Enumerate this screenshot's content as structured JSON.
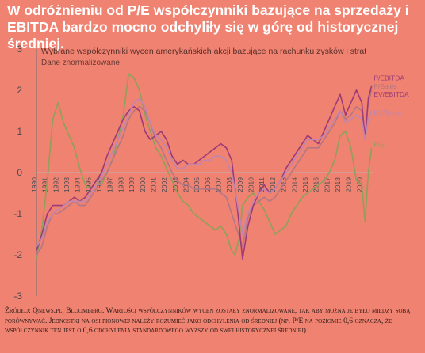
{
  "headline": "W odróżnieniu od P/E współczynniki bazujące na sprzedaży i EBITDA bardzo mocno odchyliły się w górę od historycznej średniej.",
  "source": "Źródło: Qnews.pl, Bloomberg. Wartości współczynników wycen zostały znormalizowane, tak aby można je było między sobą porównywać. Jednostki na osi pionowej należy rozumieć jako odchylenia od średniej (np. P/E na poziomie 0,6 oznacza, że współczynnik ten jest o 0,6 odchylenia standardowego wyższy od swej historycznej średniej).",
  "colors": {
    "background": "#ef8270",
    "axis": "#7a6f78",
    "zero_line": "#bfb4b6"
  },
  "chart_data": {
    "type": "line",
    "title": "Wybrane współczynniki wycen amerykańskich akcji bazujące na rachunku zysków i strat",
    "subtitle": "Dane znormalizowane",
    "ylim": [
      -3,
      3
    ],
    "xlim": [
      1990,
      2021
    ],
    "yticks": [
      "-3",
      "-2",
      "-1",
      "0",
      "1",
      "2",
      "3"
    ],
    "xticks": [
      "1990",
      "1991",
      "1992",
      "1993",
      "1994",
      "1995",
      "1996",
      "1997",
      "1998",
      "1999",
      "2000",
      "2001",
      "2002",
      "2003",
      "2004",
      "2005",
      "2006",
      "2007",
      "2008",
      "2009",
      "2010",
      "2011",
      "2012",
      "2013",
      "2014",
      "2015",
      "2016",
      "2017",
      "2018",
      "2019",
      "2020"
    ],
    "grid": false,
    "series": [
      {
        "name": "P/E",
        "color": "#8fa05a",
        "x": [
          1990,
          1990.5,
          1991,
          1991.5,
          1992,
          1992.5,
          1993,
          1993.5,
          1994,
          1994.5,
          1995,
          1995.5,
          1996,
          1996.5,
          1997,
          1997.5,
          1998,
          1998.5,
          1999,
          1999.5,
          2000,
          2000.5,
          2001,
          2001.5,
          2002,
          2002.5,
          2003,
          2003.5,
          2004,
          2004.5,
          2005,
          2005.5,
          2006,
          2006.5,
          2007,
          2007.5,
          2008,
          2008.3,
          2008.7,
          2009,
          2009.5,
          2010,
          2010.5,
          2011,
          2011.5,
          2012,
          2012.5,
          2013,
          2013.5,
          2014,
          2014.5,
          2015,
          2015.5,
          2016,
          2016.5,
          2017,
          2017.5,
          2018,
          2018.5,
          2019,
          2019.5,
          2020,
          2020.3,
          2020.6,
          2020.9
        ],
        "y": [
          -2.1,
          -1.4,
          -0.2,
          1.3,
          1.7,
          1.2,
          0.9,
          0.6,
          0.1,
          -0.3,
          -0.4,
          -0.2,
          -0.3,
          0.0,
          0.3,
          0.8,
          1.4,
          2.4,
          2.3,
          2.0,
          1.4,
          1.0,
          0.6,
          0.4,
          0.1,
          -0.2,
          -0.5,
          -0.7,
          -0.8,
          -1.0,
          -1.1,
          -1.2,
          -1.3,
          -1.4,
          -1.3,
          -1.5,
          -1.9,
          -2.0,
          -1.6,
          -0.8,
          -0.6,
          -0.5,
          -0.7,
          -0.9,
          -1.2,
          -1.5,
          -1.4,
          -1.3,
          -1.0,
          -0.8,
          -0.6,
          -0.5,
          -0.4,
          -0.3,
          -0.2,
          0.0,
          0.3,
          0.9,
          1.0,
          0.6,
          -0.2,
          -0.3,
          -1.2,
          0.0,
          0.6
        ]
      },
      {
        "name": "P/Sales",
        "color": "#b27786",
        "x": [
          1990,
          1990.5,
          1991,
          1991.5,
          1992,
          1992.5,
          1993,
          1993.5,
          1994,
          1994.5,
          1995,
          1995.5,
          1996,
          1996.5,
          1997,
          1997.5,
          1998,
          1998.5,
          1999,
          1999.5,
          2000,
          2000.5,
          2001,
          2001.5,
          2002,
          2002.5,
          2003,
          2003.5,
          2004,
          2004.5,
          2005,
          2005.5,
          2006,
          2006.5,
          2007,
          2007.5,
          2008,
          2008.5,
          2009,
          2009.5,
          2010,
          2010.5,
          2011,
          2011.5,
          2012,
          2012.5,
          2013,
          2013.5,
          2014,
          2014.5,
          2015,
          2015.5,
          2016,
          2016.5,
          2017,
          2017.5,
          2018,
          2018.5,
          2019,
          2019.5,
          2020,
          2020.3,
          2020.6,
          2020.9
        ],
        "y": [
          -2.0,
          -1.8,
          -1.3,
          -1.0,
          -1.0,
          -0.9,
          -0.8,
          -0.7,
          -0.8,
          -0.8,
          -0.6,
          -0.4,
          -0.2,
          0.0,
          0.3,
          0.6,
          0.9,
          1.3,
          1.5,
          1.6,
          1.5,
          1.2,
          0.8,
          0.6,
          0.3,
          0.0,
          -0.2,
          -0.3,
          -0.3,
          -0.4,
          -0.4,
          -0.4,
          -0.4,
          -0.4,
          -0.5,
          -0.6,
          -1.0,
          -1.4,
          -1.8,
          -1.1,
          -0.8,
          -0.7,
          -0.6,
          -0.7,
          -0.6,
          -0.4,
          -0.2,
          0.0,
          0.2,
          0.4,
          0.6,
          0.6,
          0.6,
          0.8,
          1.0,
          1.2,
          1.5,
          1.3,
          1.4,
          1.6,
          1.5,
          0.9,
          1.7,
          2.0
        ]
      },
      {
        "name": "EV/EBITDA",
        "color": "#9d3a78",
        "x": [
          1990,
          1990.5,
          1991,
          1991.5,
          1992,
          1992.5,
          1993,
          1993.5,
          1994,
          1994.5,
          1995,
          1995.5,
          1996,
          1996.5,
          1997,
          1997.5,
          1998,
          1998.5,
          1999,
          1999.5,
          2000,
          2000.5,
          2001,
          2001.5,
          2002,
          2002.5,
          2003,
          2003.5,
          2004,
          2004.5,
          2005,
          2005.5,
          2006,
          2006.5,
          2007,
          2007.5,
          2008,
          2008.5,
          2009,
          2009.5,
          2010,
          2010.5,
          2011,
          2011.5,
          2012,
          2012.5,
          2013,
          2013.5,
          2014,
          2014.5,
          2015,
          2015.5,
          2016,
          2016.5,
          2017,
          2017.5,
          2018,
          2018.5,
          2019,
          2019.5,
          2020,
          2020.3,
          2020.6,
          2020.9
        ],
        "y": [
          -1.9,
          -1.5,
          -1.0,
          -0.8,
          -0.8,
          -0.8,
          -0.7,
          -0.6,
          -0.7,
          -0.6,
          -0.4,
          -0.2,
          0.0,
          0.4,
          0.7,
          1.0,
          1.3,
          1.5,
          1.6,
          1.5,
          1.0,
          0.8,
          0.9,
          1.0,
          0.8,
          0.4,
          0.2,
          0.3,
          0.2,
          0.2,
          0.3,
          0.4,
          0.5,
          0.6,
          0.7,
          0.6,
          0.3,
          -0.8,
          -2.1,
          -1.3,
          -0.8,
          -0.5,
          -0.3,
          -0.5,
          -0.4,
          -0.2,
          0.1,
          0.3,
          0.5,
          0.7,
          0.9,
          0.8,
          0.7,
          1.0,
          1.3,
          1.6,
          1.9,
          1.4,
          1.7,
          2.0,
          1.7,
          0.8,
          1.8,
          2.1
        ]
      },
      {
        "name": "EV/Sales",
        "color": "#c086b1",
        "x": [
          1990,
          1990.5,
          1991,
          1991.5,
          1992,
          1992.5,
          1993,
          1993.5,
          1994,
          1994.5,
          1995,
          1995.5,
          1996,
          1996.5,
          1997,
          1997.5,
          1998,
          1998.5,
          1999,
          1999.5,
          2000,
          2000.5,
          2001,
          2001.5,
          2002,
          2002.5,
          2003,
          2003.5,
          2004,
          2004.5,
          2005,
          2005.5,
          2006,
          2006.5,
          2007,
          2007.5,
          2008,
          2008.5,
          2009,
          2009.5,
          2010,
          2010.5,
          2011,
          2011.5,
          2012,
          2012.5,
          2013,
          2013.5,
          2014,
          2014.5,
          2015,
          2015.5,
          2016,
          2016.5,
          2017,
          2017.5,
          2018,
          2018.5,
          2019,
          2019.5,
          2020,
          2020.3,
          2020.6,
          2020.9
        ],
        "y": [
          -1.8,
          -1.6,
          -1.2,
          -1.0,
          -0.9,
          -0.8,
          -0.7,
          -0.7,
          -0.7,
          -0.7,
          -0.5,
          -0.3,
          -0.1,
          0.2,
          0.5,
          0.8,
          1.1,
          1.4,
          1.7,
          1.8,
          1.6,
          1.2,
          0.9,
          0.8,
          0.6,
          0.3,
          0.1,
          0.1,
          0.2,
          0.2,
          0.2,
          0.3,
          0.3,
          0.4,
          0.4,
          0.3,
          0.0,
          -0.7,
          -1.5,
          -1.0,
          -0.7,
          -0.5,
          -0.4,
          -0.5,
          -0.4,
          -0.2,
          0.0,
          0.2,
          0.4,
          0.6,
          0.8,
          0.8,
          0.8,
          0.9,
          1.1,
          1.3,
          1.5,
          1.2,
          1.3,
          1.4,
          1.3,
          0.8,
          1.3,
          1.5
        ]
      }
    ],
    "labels": [
      {
        "text": "P/EBITDA",
        "series": "EV/EBITDA",
        "x": 2020.95,
        "y": 2.3
      },
      {
        "text": "P/Sales",
        "series": "P/Sales",
        "x": 2020.95,
        "y": 2.1
      },
      {
        "text": "EV/EBITDA",
        "series": "EV/EBITDA",
        "x": 2020.95,
        "y": 1.9
      },
      {
        "text": "EV/Sales",
        "series": "EV/Sales",
        "x": 2020.95,
        "y": 1.45
      },
      {
        "text": "P/E",
        "series": "P/E",
        "x": 2020.95,
        "y": 0.68
      }
    ]
  }
}
